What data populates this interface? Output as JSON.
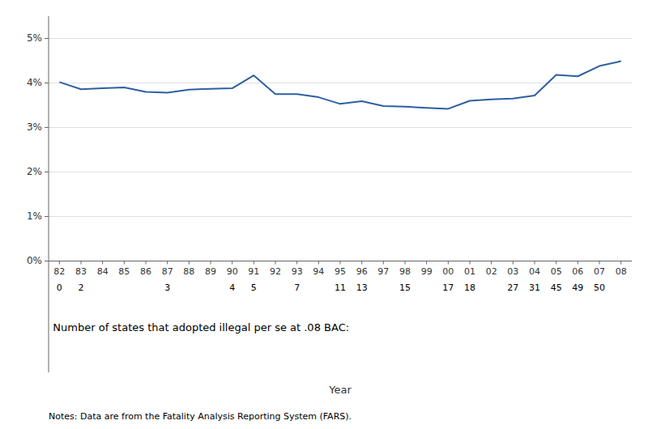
{
  "chart_data": {
    "type": "line",
    "categories": [
      "82",
      "83",
      "84",
      "85",
      "86",
      "87",
      "88",
      "89",
      "90",
      "91",
      "92",
      "93",
      "94",
      "95",
      "96",
      "97",
      "98",
      "99",
      "00",
      "01",
      "02",
      "03",
      "04",
      "05",
      "06",
      "07",
      "08"
    ],
    "values": [
      4.02,
      3.86,
      3.88,
      3.9,
      3.8,
      3.78,
      3.85,
      3.87,
      3.88,
      4.17,
      3.75,
      3.75,
      3.68,
      3.53,
      3.59,
      3.48,
      3.47,
      3.44,
      3.42,
      3.6,
      3.63,
      3.65,
      3.72,
      4.18,
      4.15,
      4.38,
      4.49
    ],
    "color": "#2e5fa3",
    "xlabel": "Year",
    "ylim": [
      -2.5,
      5.5
    ],
    "yticks": [
      {
        "value": 0,
        "label": "0%"
      },
      {
        "value": 1,
        "label": "1%"
      },
      {
        "value": 2,
        "label": "2%"
      },
      {
        "value": 3,
        "label": "3%"
      },
      {
        "value": 4,
        "label": "4%"
      },
      {
        "value": 5,
        "label": "5%"
      }
    ],
    "grid": true,
    "state_counts": [
      0,
      2,
      null,
      null,
      null,
      3,
      null,
      null,
      4,
      5,
      null,
      7,
      null,
      11,
      13,
      null,
      15,
      null,
      17,
      18,
      null,
      27,
      31,
      45,
      49,
      50,
      null
    ],
    "annotation": "Number of states that adopted illegal per se at .08 BAC:",
    "note": "Notes: Data are from the Fatality Analysis Reporting System (FARS)."
  }
}
